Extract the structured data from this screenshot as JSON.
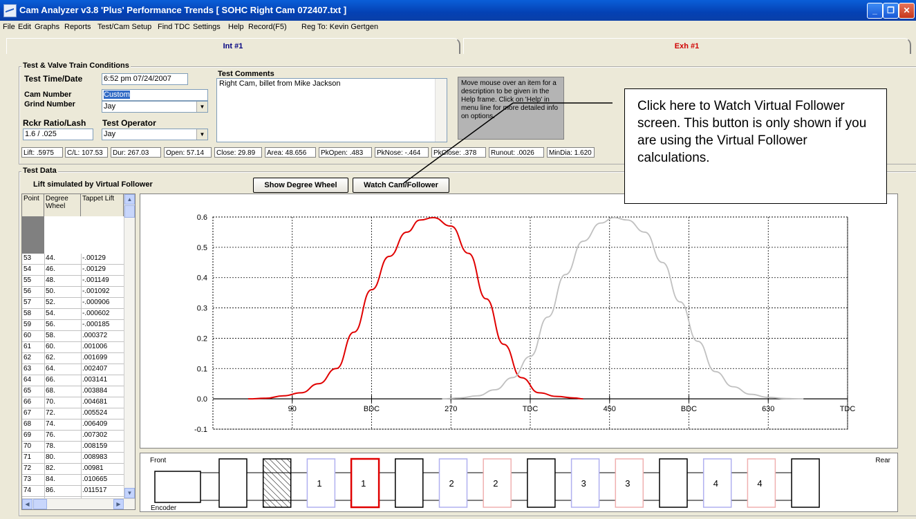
{
  "window": {
    "title": "Cam Analyzer v3.8 'Plus'  Performance Trends   [ SOHC Right Cam 072407.txt ]"
  },
  "menu": [
    "File",
    "Edit",
    "Graphs",
    "Reports",
    "Test/Cam Setup",
    "Find TDC",
    "Settings",
    "Help",
    "Record(F5)",
    "Reg To: Kevin Gertgen"
  ],
  "tabs": {
    "intake": "Int #1",
    "exhaust": "Exh #1"
  },
  "conditions": {
    "group_title": "Test & Valve Train Conditions",
    "test_time_label": "Test Time/Date",
    "test_time_value": "6:52 pm  07/24/2007",
    "cam_number_label": "Cam Number",
    "cam_number_value": "Custom",
    "grind_number_label": "Grind Number",
    "grind_number_value": "Jay",
    "rocker_label": "Rckr Ratio/Lash",
    "rocker_value": "1.6  /  .025",
    "operator_label": "Test Operator",
    "operator_value": "Jay",
    "comments_label": "Test Comments",
    "comments_value": "Right Cam, billet from Mike Jackson",
    "help_text": "Move mouse over an item for a description to be given in the Help frame.  Click on 'Help' in menu line for more detailed info on options."
  },
  "stats": [
    "Lift: .5975",
    "C/L: 107.53",
    "Dur: 267.03",
    "Open: 57.14",
    "Close: 29.89",
    "Area: 48.656",
    "PkOpen: .483",
    "PkNose: -.464",
    "PkClose: .378",
    "Runout: .0026",
    "MinDia: 1.620"
  ],
  "test_data": {
    "group_title": "Test Data",
    "subtitle": "Lift simulated by Virtual Follower",
    "show_degree_wheel": "Show Degree Wheel",
    "watch_cam": "Watch Cam/Follower",
    "columns": [
      "Point",
      "Degree Wheel",
      "Tappet Lift"
    ],
    "rows": [
      [
        "53",
        "44.",
        "-.00129"
      ],
      [
        "54",
        "46.",
        "-.00129"
      ],
      [
        "55",
        "48.",
        "-.001149"
      ],
      [
        "56",
        "50.",
        "-.001092"
      ],
      [
        "57",
        "52.",
        "-.000906"
      ],
      [
        "58",
        "54.",
        "-.000602"
      ],
      [
        "59",
        "56.",
        "-.000185"
      ],
      [
        "60",
        "58.",
        ".000372"
      ],
      [
        "61",
        "60.",
        ".001006"
      ],
      [
        "62",
        "62.",
        ".001699"
      ],
      [
        "63",
        "64.",
        ".002407"
      ],
      [
        "64",
        "66.",
        ".003141"
      ],
      [
        "65",
        "68.",
        ".003884"
      ],
      [
        "66",
        "70.",
        ".004681"
      ],
      [
        "67",
        "72.",
        ".005524"
      ],
      [
        "68",
        "74.",
        ".006409"
      ],
      [
        "69",
        "76.",
        ".007302"
      ],
      [
        "70",
        "78.",
        ".008159"
      ],
      [
        "71",
        "80.",
        ".008983"
      ],
      [
        "72",
        "82.",
        ".00981"
      ],
      [
        "73",
        "84.",
        ".010665"
      ],
      [
        "74",
        "86.",
        ".011517"
      ]
    ]
  },
  "callout": {
    "text": "Click here to Watch Virtual Follower screen.  This button is only shown if you are using the Virtual Follower calculations."
  },
  "chart_data": {
    "type": "line",
    "xlim": [
      0,
      720
    ],
    "ylim": [
      -0.1,
      0.6
    ],
    "x_ticks": [
      {
        "v": 90,
        "label": "90"
      },
      {
        "v": 180,
        "label": "BDC"
      },
      {
        "v": 270,
        "label": "270"
      },
      {
        "v": 360,
        "label": "TDC"
      },
      {
        "v": 450,
        "label": "450"
      },
      {
        "v": 540,
        "label": "BDC"
      },
      {
        "v": 630,
        "label": "630"
      },
      {
        "v": 720,
        "label": "TDC"
      }
    ],
    "y_ticks": [
      {
        "v": 0.6,
        "label": "0.6"
      },
      {
        "v": 0.5,
        "label": "0.5"
      },
      {
        "v": 0.4,
        "label": "0.4"
      },
      {
        "v": 0.3,
        "label": "0.3"
      },
      {
        "v": 0.2,
        "label": "0.2"
      },
      {
        "v": 0.1,
        "label": "0.1"
      },
      {
        "v": 0.0,
        "label": "0.0"
      },
      {
        "v": -0.1,
        "label": "-0.1"
      }
    ],
    "grid": true,
    "series": [
      {
        "color": "#e00000",
        "x": [
          40,
          60,
          80,
          100,
          120,
          140,
          160,
          180,
          200,
          220,
          235,
          250,
          270,
          290,
          310,
          330,
          350,
          370,
          390,
          410,
          420
        ],
        "y": [
          0,
          0.002,
          0.01,
          0.02,
          0.05,
          0.1,
          0.22,
          0.36,
          0.47,
          0.55,
          0.59,
          0.598,
          0.57,
          0.48,
          0.33,
          0.18,
          0.07,
          0.02,
          0.008,
          0.003,
          0
        ]
      },
      {
        "color": "#c0c0c0",
        "x": [
          260,
          280,
          300,
          320,
          340,
          360,
          380,
          400,
          420,
          440,
          455,
          470,
          490,
          510,
          530,
          550,
          570,
          590,
          610,
          630,
          650,
          670
        ],
        "y": [
          0,
          0.003,
          0.01,
          0.03,
          0.07,
          0.14,
          0.27,
          0.41,
          0.52,
          0.58,
          0.598,
          0.59,
          0.55,
          0.45,
          0.32,
          0.19,
          0.09,
          0.04,
          0.015,
          0.005,
          0.001,
          0
        ]
      }
    ]
  },
  "engine": {
    "front_label": "Front",
    "rear_label": "Rear",
    "encoder_label": "Encoder",
    "lobes": [
      {
        "label": "",
        "color": "#000000",
        "kind": "plain"
      },
      {
        "label": "",
        "color": "#000000",
        "kind": "hatched"
      },
      {
        "label": "1",
        "color": "#b0b0f0",
        "kind": "plain"
      },
      {
        "label": "1",
        "color": "#e00000",
        "kind": "selected"
      },
      {
        "label": "",
        "color": "#000000",
        "kind": "plain"
      },
      {
        "label": "2",
        "color": "#b0b0f0",
        "kind": "plain"
      },
      {
        "label": "2",
        "color": "#f0b0b0",
        "kind": "plain"
      },
      {
        "label": "",
        "color": "#000000",
        "kind": "plain"
      },
      {
        "label": "3",
        "color": "#b0b0f0",
        "kind": "plain"
      },
      {
        "label": "3",
        "color": "#f0b0b0",
        "kind": "plain"
      },
      {
        "label": "",
        "color": "#000000",
        "kind": "plain"
      },
      {
        "label": "4",
        "color": "#b0b0f0",
        "kind": "plain"
      },
      {
        "label": "4",
        "color": "#f0b0b0",
        "kind": "plain"
      },
      {
        "label": "",
        "color": "#000000",
        "kind": "plain"
      }
    ]
  }
}
